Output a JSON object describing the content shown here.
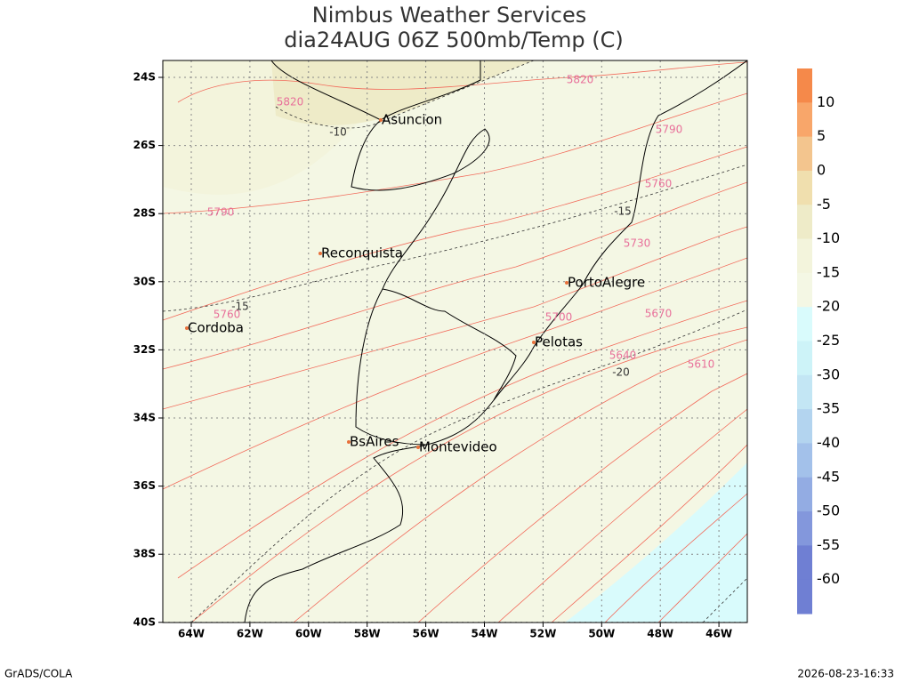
{
  "title": [
    "Nimbus Weather Services",
    "dia24AUG 06Z 500mb/Temp (C)"
  ],
  "lat_labels": [
    "24S",
    "26S",
    "28S",
    "30S",
    "32S",
    "34S",
    "36S",
    "38S",
    "40S"
  ],
  "lon_labels": [
    "64W",
    "62W",
    "60W",
    "58W",
    "56W",
    "54W",
    "52W",
    "50W",
    "48W",
    "46W"
  ],
  "cities": [
    "Asuncion",
    "Reconquista",
    "PortoAlegre",
    "Cordoba",
    "Pelotas",
    "BsAires",
    "Montevideo"
  ],
  "height_labels": [
    "5820",
    "5820",
    "5790",
    "5790",
    "5760",
    "5760",
    "5730",
    "5700",
    "5670",
    "5640",
    "5610"
  ],
  "temp_labels": [
    "-10",
    "-15",
    "-15",
    "-20"
  ],
  "colorbar_labels": [
    "10",
    "5",
    "0",
    "-5",
    "-10",
    "-15",
    "-20",
    "-25",
    "-30",
    "-35",
    "-40",
    "-45",
    "-50",
    "-55",
    "-60"
  ],
  "footer": {
    "left": "GrADS/COLA",
    "right": "2026-08-23-16:33"
  }
}
